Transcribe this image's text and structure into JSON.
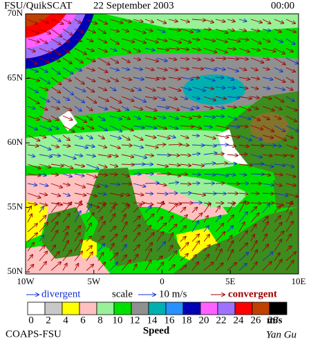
{
  "header": {
    "product": "FSU/QuikSCAT",
    "date": "22 September 2003",
    "time": "00:00"
  },
  "map": {
    "lat_labels": [
      "70N",
      "65N",
      "60N",
      "55N",
      "50N"
    ],
    "lon_labels": [
      "10W",
      "5W",
      "0",
      "5E",
      "10E"
    ]
  },
  "legend": {
    "divergent": "divergent",
    "scale": "scale",
    "scale_value": "10 m/s",
    "convergent": "convergent",
    "colors": [
      "#ffffff",
      "#c8c8c8",
      "#ffff00",
      "#ffc0c0",
      "#98f098",
      "#00e000",
      "#909090",
      "#00b0b0",
      "#2890ff",
      "#0000b4",
      "#ff60ff",
      "#a070ff",
      "#ff0000",
      "#c04000",
      "#000000"
    ],
    "ticks": [
      0,
      2,
      4,
      6,
      8,
      10,
      12,
      14,
      16,
      18,
      20,
      22,
      24,
      26,
      28
    ],
    "unit": "m/s",
    "title": "Speed"
  },
  "footer": {
    "left": "COAPS-FSU",
    "right": "Yan Gu"
  }
}
